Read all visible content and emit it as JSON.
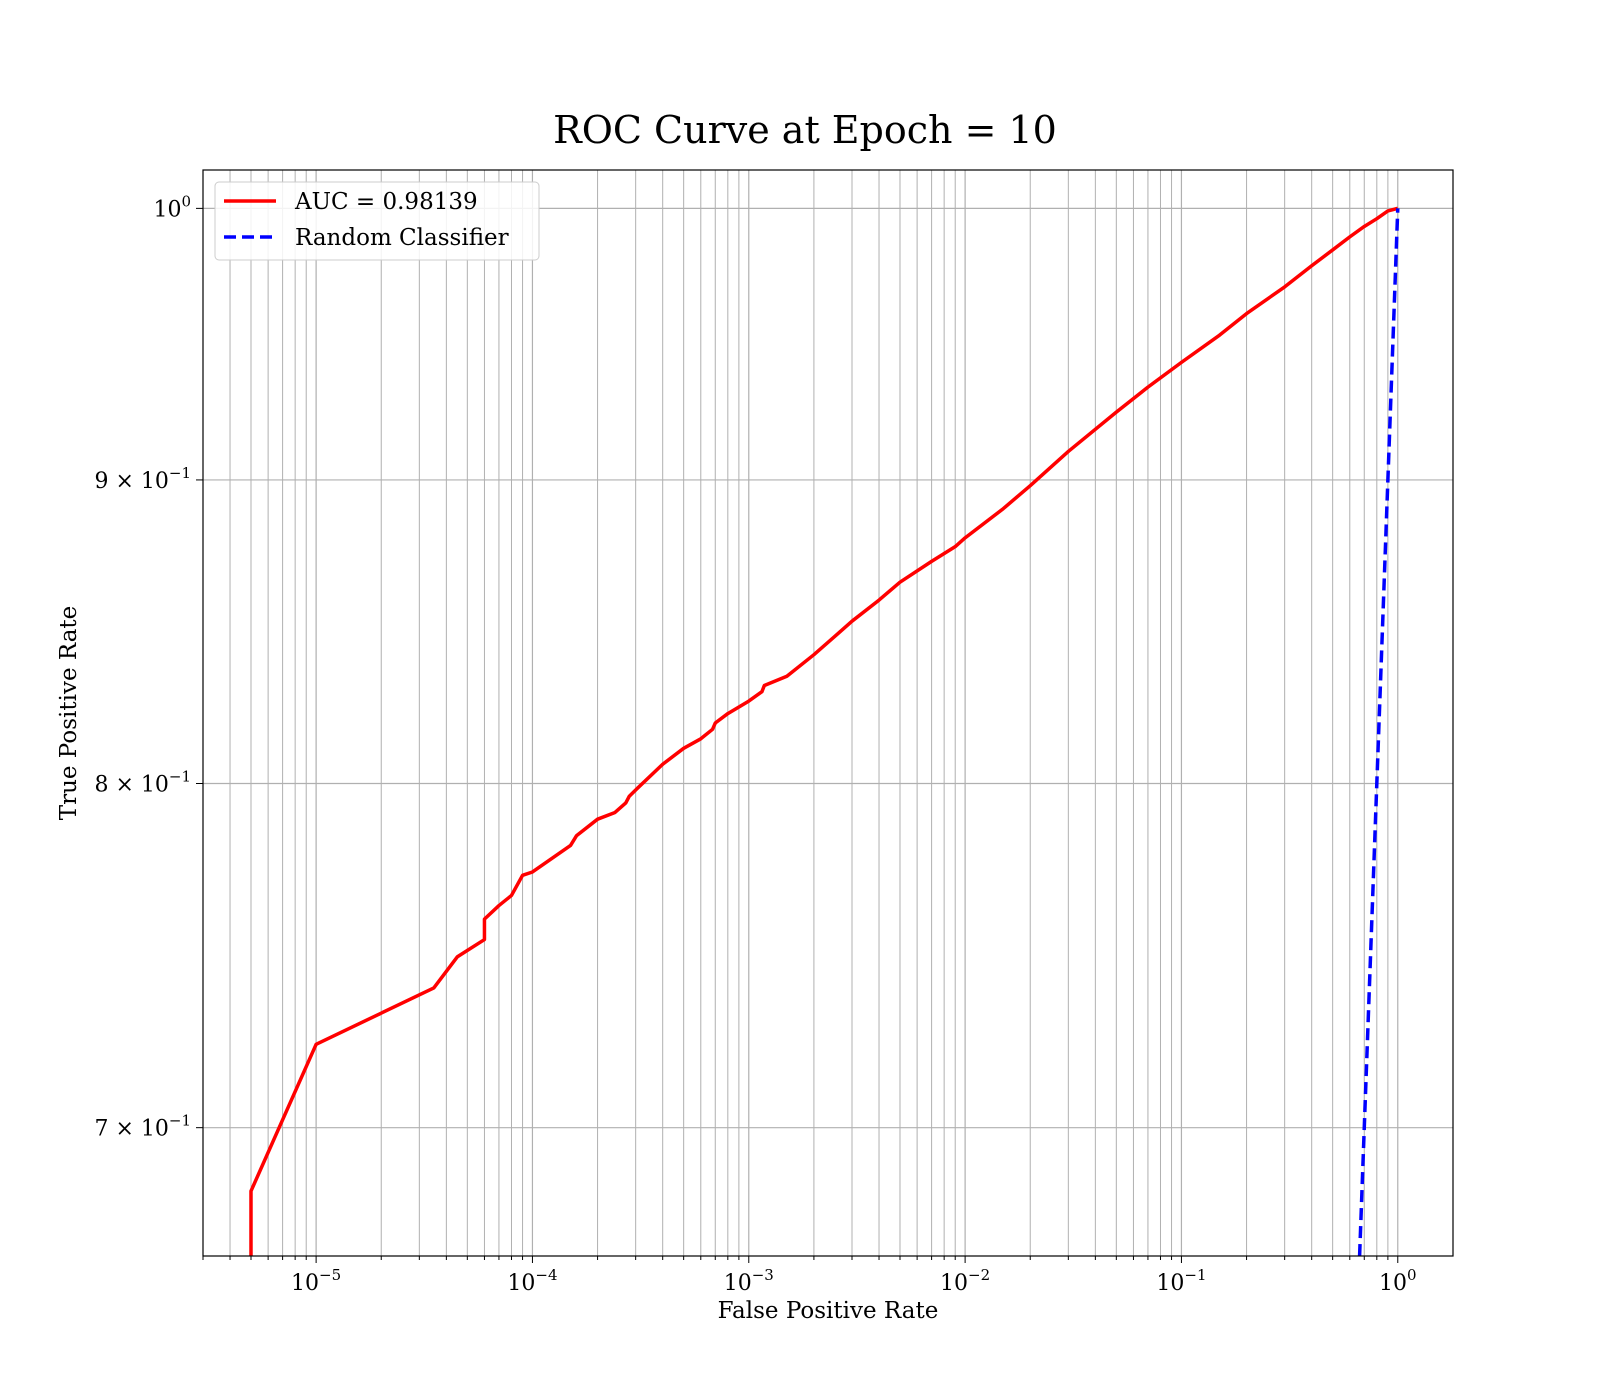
{
  "chart_data": {
    "type": "line",
    "title": "ROC Curve at Epoch = 10",
    "xlabel": "False Positive Rate",
    "ylabel": "True Positive Rate",
    "xscale": "log",
    "yscale": "log",
    "xlim": [
      3e-06,
      1.8
    ],
    "ylim": [
      0.666,
      1.015
    ],
    "grid": "both (major and minor)",
    "legend_position": "top-left",
    "x_ticks": [
      {
        "value": 1e-05,
        "base": "10",
        "exp": "−5"
      },
      {
        "value": 0.0001,
        "base": "10",
        "exp": "−4"
      },
      {
        "value": 0.001,
        "base": "10",
        "exp": "−3"
      },
      {
        "value": 0.01,
        "base": "10",
        "exp": "−2"
      },
      {
        "value": 0.1,
        "base": "10",
        "exp": "−1"
      },
      {
        "value": 1,
        "base": "10",
        "exp": "0"
      }
    ],
    "y_ticks": [
      {
        "value": 1.0,
        "base": "10",
        "exp": "0"
      },
      {
        "value": 0.9,
        "base": "9 × 10",
        "exp": "−1"
      },
      {
        "value": 0.8,
        "base": "8 × 10",
        "exp": "−1"
      },
      {
        "value": 0.7,
        "base": "7 × 10",
        "exp": "−1"
      }
    ],
    "series": [
      {
        "name": "AUC = 0.98139",
        "color": "#ff0000",
        "style": "solid",
        "x": [
          5e-06,
          5e-06,
          1e-05,
          3.5e-05,
          4.5e-05,
          6e-05,
          6e-05,
          7e-05,
          8e-05,
          9e-05,
          0.0001,
          0.00015,
          0.00016,
          0.0002,
          0.00024,
          0.00027,
          0.00028,
          0.0003,
          0.0004,
          0.0005,
          0.0006,
          0.00068,
          0.0007,
          0.0008,
          0.001,
          0.00115,
          0.00118,
          0.0015,
          0.002,
          0.0025,
          0.003,
          0.004,
          0.005,
          0.007,
          0.009,
          0.01,
          0.015,
          0.02,
          0.03,
          0.05,
          0.07,
          0.1,
          0.15,
          0.2,
          0.3,
          0.4,
          0.5,
          0.6,
          0.7,
          0.8,
          0.9,
          1.0
        ],
        "y": [
          0.666,
          0.683,
          0.723,
          0.739,
          0.748,
          0.753,
          0.759,
          0.763,
          0.766,
          0.772,
          0.773,
          0.781,
          0.784,
          0.789,
          0.791,
          0.794,
          0.796,
          0.798,
          0.806,
          0.811,
          0.814,
          0.817,
          0.819,
          0.822,
          0.826,
          0.829,
          0.831,
          0.834,
          0.841,
          0.847,
          0.852,
          0.859,
          0.865,
          0.872,
          0.877,
          0.88,
          0.89,
          0.898,
          0.91,
          0.924,
          0.933,
          0.942,
          0.952,
          0.96,
          0.97,
          0.978,
          0.984,
          0.989,
          0.993,
          0.996,
          0.999,
          1.0
        ]
      },
      {
        "name": "Random Classifier",
        "color": "#0000ff",
        "style": "dashed",
        "x": [
          0.666,
          1.0
        ],
        "y": [
          0.666,
          1.0
        ]
      }
    ]
  }
}
